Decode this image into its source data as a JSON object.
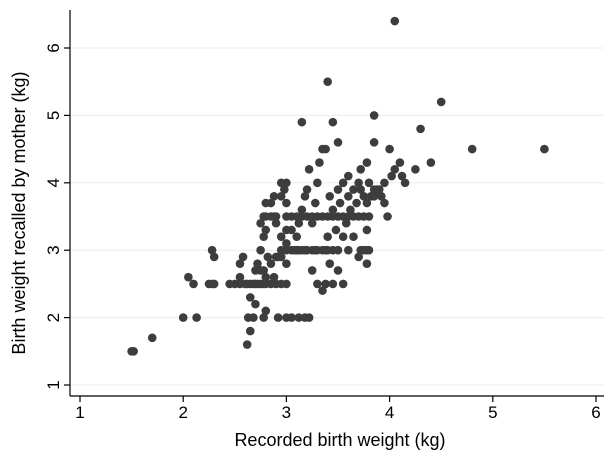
{
  "chart_data": {
    "type": "scatter",
    "xlabel": "Recorded birth weight (kg)",
    "ylabel": "Birth weight recalled by mother (kg)",
    "xlim": [
      1,
      6
    ],
    "ylim": [
      1,
      6
    ],
    "xticks": [
      "1",
      "2",
      "3",
      "4",
      "5",
      "6"
    ],
    "yticks": [
      "1",
      "2",
      "3",
      "4",
      "5",
      "6"
    ],
    "grid": "horizontal",
    "marker_color": "#3d3d3d",
    "points": [
      [
        1.5,
        1.5
      ],
      [
        1.52,
        1.5
      ],
      [
        1.7,
        1.7
      ],
      [
        2.0,
        2.0
      ],
      [
        2.13,
        2.0
      ],
      [
        2.05,
        2.6
      ],
      [
        2.1,
        2.5
      ],
      [
        2.25,
        2.5
      ],
      [
        2.28,
        2.5
      ],
      [
        2.3,
        2.5
      ],
      [
        2.28,
        3.0
      ],
      [
        2.3,
        2.9
      ],
      [
        2.45,
        2.5
      ],
      [
        2.5,
        2.5
      ],
      [
        2.55,
        2.6
      ],
      [
        2.55,
        2.8
      ],
      [
        2.58,
        2.9
      ],
      [
        2.55,
        2.5
      ],
      [
        2.6,
        2.5
      ],
      [
        2.62,
        2.5
      ],
      [
        2.65,
        2.5
      ],
      [
        2.68,
        2.5
      ],
      [
        2.7,
        2.5
      ],
      [
        2.72,
        2.5
      ],
      [
        2.75,
        2.5
      ],
      [
        2.78,
        2.5
      ],
      [
        2.8,
        2.5
      ],
      [
        2.85,
        2.5
      ],
      [
        2.9,
        2.5
      ],
      [
        2.95,
        2.5
      ],
      [
        2.62,
        1.6
      ],
      [
        2.65,
        1.8
      ],
      [
        2.63,
        2.0
      ],
      [
        2.68,
        2.0
      ],
      [
        2.78,
        2.0
      ],
      [
        2.8,
        2.1
      ],
      [
        2.65,
        2.3
      ],
      [
        2.7,
        2.2
      ],
      [
        2.7,
        2.7
      ],
      [
        2.72,
        2.8
      ],
      [
        2.75,
        2.7
      ],
      [
        2.78,
        2.7
      ],
      [
        2.8,
        2.6
      ],
      [
        2.82,
        2.9
      ],
      [
        2.85,
        2.8
      ],
      [
        2.88,
        2.6
      ],
      [
        2.9,
        2.9
      ],
      [
        2.92,
        2.9
      ],
      [
        2.95,
        2.9
      ],
      [
        2.75,
        3.0
      ],
      [
        2.78,
        3.2
      ],
      [
        2.8,
        3.3
      ],
      [
        2.75,
        3.4
      ],
      [
        2.78,
        3.5
      ],
      [
        2.8,
        3.5
      ],
      [
        2.85,
        3.5
      ],
      [
        2.88,
        3.5
      ],
      [
        2.9,
        3.5
      ],
      [
        2.8,
        3.7
      ],
      [
        2.85,
        3.7
      ],
      [
        2.88,
        3.8
      ],
      [
        2.9,
        3.4
      ],
      [
        2.95,
        3.0
      ],
      [
        2.95,
        3.2
      ],
      [
        2.95,
        3.8
      ],
      [
        2.95,
        4.0
      ],
      [
        2.98,
        3.9
      ],
      [
        3.0,
        4.0
      ],
      [
        3.0,
        3.7
      ],
      [
        3.0,
        3.5
      ],
      [
        3.0,
        3.3
      ],
      [
        3.0,
        3.1
      ],
      [
        3.0,
        3.0
      ],
      [
        3.0,
        2.8
      ],
      [
        3.0,
        2.5
      ],
      [
        2.92,
        2.0
      ],
      [
        3.0,
        2.0
      ],
      [
        3.05,
        2.0
      ],
      [
        3.12,
        2.0
      ],
      [
        3.18,
        2.0
      ],
      [
        3.22,
        2.0
      ],
      [
        3.05,
        3.0
      ],
      [
        3.08,
        3.0
      ],
      [
        3.1,
        3.0
      ],
      [
        3.12,
        3.0
      ],
      [
        3.15,
        3.0
      ],
      [
        3.18,
        3.0
      ],
      [
        3.2,
        3.0
      ],
      [
        3.25,
        3.0
      ],
      [
        3.28,
        3.0
      ],
      [
        3.3,
        3.0
      ],
      [
        3.35,
        3.0
      ],
      [
        3.38,
        3.0
      ],
      [
        3.4,
        3.0
      ],
      [
        3.45,
        3.0
      ],
      [
        3.5,
        3.0
      ],
      [
        3.05,
        3.5
      ],
      [
        3.1,
        3.5
      ],
      [
        3.15,
        3.5
      ],
      [
        3.2,
        3.5
      ],
      [
        3.25,
        3.5
      ],
      [
        3.3,
        3.5
      ],
      [
        3.35,
        3.5
      ],
      [
        3.4,
        3.5
      ],
      [
        3.45,
        3.5
      ],
      [
        3.5,
        3.5
      ],
      [
        3.55,
        3.5
      ],
      [
        3.6,
        3.5
      ],
      [
        3.65,
        3.5
      ],
      [
        3.7,
        3.5
      ],
      [
        3.75,
        3.5
      ],
      [
        3.8,
        3.5
      ],
      [
        3.05,
        3.3
      ],
      [
        3.1,
        3.2
      ],
      [
        3.12,
        3.4
      ],
      [
        3.15,
        3.6
      ],
      [
        3.18,
        3.8
      ],
      [
        3.2,
        3.9
      ],
      [
        3.22,
        4.2
      ],
      [
        3.25,
        3.4
      ],
      [
        3.28,
        3.7
      ],
      [
        3.3,
        4.0
      ],
      [
        3.32,
        4.3
      ],
      [
        3.35,
        4.5
      ],
      [
        3.38,
        4.5
      ],
      [
        3.15,
        4.9
      ],
      [
        3.4,
        5.5
      ],
      [
        3.45,
        4.9
      ],
      [
        3.5,
        4.6
      ],
      [
        3.4,
        3.2
      ],
      [
        3.42,
        3.8
      ],
      [
        3.45,
        3.6
      ],
      [
        3.48,
        3.3
      ],
      [
        3.5,
        3.9
      ],
      [
        3.52,
        3.7
      ],
      [
        3.55,
        4.0
      ],
      [
        3.58,
        3.4
      ],
      [
        3.6,
        3.8
      ],
      [
        3.6,
        4.1
      ],
      [
        3.62,
        3.6
      ],
      [
        3.65,
        3.9
      ],
      [
        3.68,
        3.7
      ],
      [
        3.7,
        4.0
      ],
      [
        3.72,
        3.9
      ],
      [
        3.72,
        4.2
      ],
      [
        3.75,
        3.8
      ],
      [
        3.78,
        3.7
      ],
      [
        3.78,
        4.3
      ],
      [
        3.8,
        4.0
      ],
      [
        3.3,
        2.5
      ],
      [
        3.35,
        2.4
      ],
      [
        3.38,
        2.5
      ],
      [
        3.45,
        2.5
      ],
      [
        3.55,
        2.5
      ],
      [
        3.25,
        2.7
      ],
      [
        3.42,
        2.8
      ],
      [
        3.5,
        2.7
      ],
      [
        3.55,
        3.2
      ],
      [
        3.65,
        3.2
      ],
      [
        3.6,
        3.0
      ],
      [
        3.7,
        2.9
      ],
      [
        3.72,
        3.0
      ],
      [
        3.75,
        3.0
      ],
      [
        3.78,
        3.0
      ],
      [
        3.8,
        3.0
      ],
      [
        3.78,
        2.8
      ],
      [
        3.78,
        3.3
      ],
      [
        3.82,
        3.8
      ],
      [
        3.85,
        3.8
      ],
      [
        3.85,
        3.9
      ],
      [
        3.88,
        3.9
      ],
      [
        3.9,
        3.9
      ],
      [
        3.92,
        3.8
      ],
      [
        3.95,
        4.0
      ],
      [
        3.95,
        3.7
      ],
      [
        3.98,
        3.5
      ],
      [
        3.85,
        5.0
      ],
      [
        3.85,
        4.6
      ],
      [
        4.0,
        4.5
      ],
      [
        4.02,
        4.1
      ],
      [
        4.05,
        4.2
      ],
      [
        4.05,
        6.4
      ],
      [
        4.1,
        4.3
      ],
      [
        4.12,
        4.1
      ],
      [
        4.15,
        4.0
      ],
      [
        4.25,
        4.2
      ],
      [
        4.3,
        4.8
      ],
      [
        4.4,
        4.3
      ],
      [
        4.5,
        5.2
      ],
      [
        4.8,
        4.5
      ],
      [
        5.5,
        4.5
      ]
    ]
  }
}
